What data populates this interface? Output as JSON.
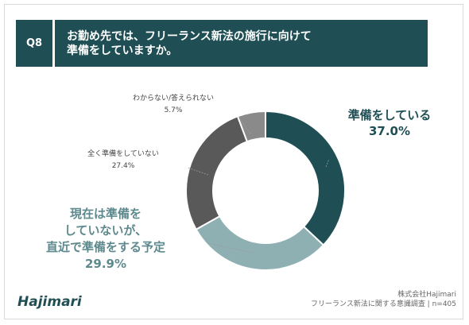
{
  "header": {
    "badge": "Q8",
    "question_line1": "お勤め先では、フリーランス新法の施行に向けて",
    "question_line2": "準備をしていますか。"
  },
  "chart_data": {
    "type": "pie",
    "donut": true,
    "categories": [
      "準備をしている",
      "現在は準備をしていないが、直近で準備をする予定",
      "全く準備をしていない",
      "わからない/答えられない"
    ],
    "values": [
      37.0,
      29.9,
      27.4,
      5.7
    ],
    "colors": [
      "#1f4f54",
      "#8fb0b3",
      "#595959",
      "#8a8a8a"
    ],
    "labels": [
      {
        "lines": [
          "準備をしている",
          "37.0%"
        ],
        "color": "#1f4f54"
      },
      {
        "lines": [
          "現在は準備を",
          "していないが、",
          "直近で準備をする予定",
          "29.9%"
        ],
        "color": "#5e8a8e"
      },
      {
        "lines": [
          "全く準備をしていない",
          "27.4%"
        ],
        "color": "#444444"
      },
      {
        "lines": [
          "わからない/答えられない",
          "5.7%"
        ],
        "color": "#444444"
      }
    ]
  },
  "footer": {
    "logo": "Hajimari",
    "source_line1": "株式会社Hajimari",
    "source_line2": "フリーランス新法に関する意識調査 | n=405"
  }
}
